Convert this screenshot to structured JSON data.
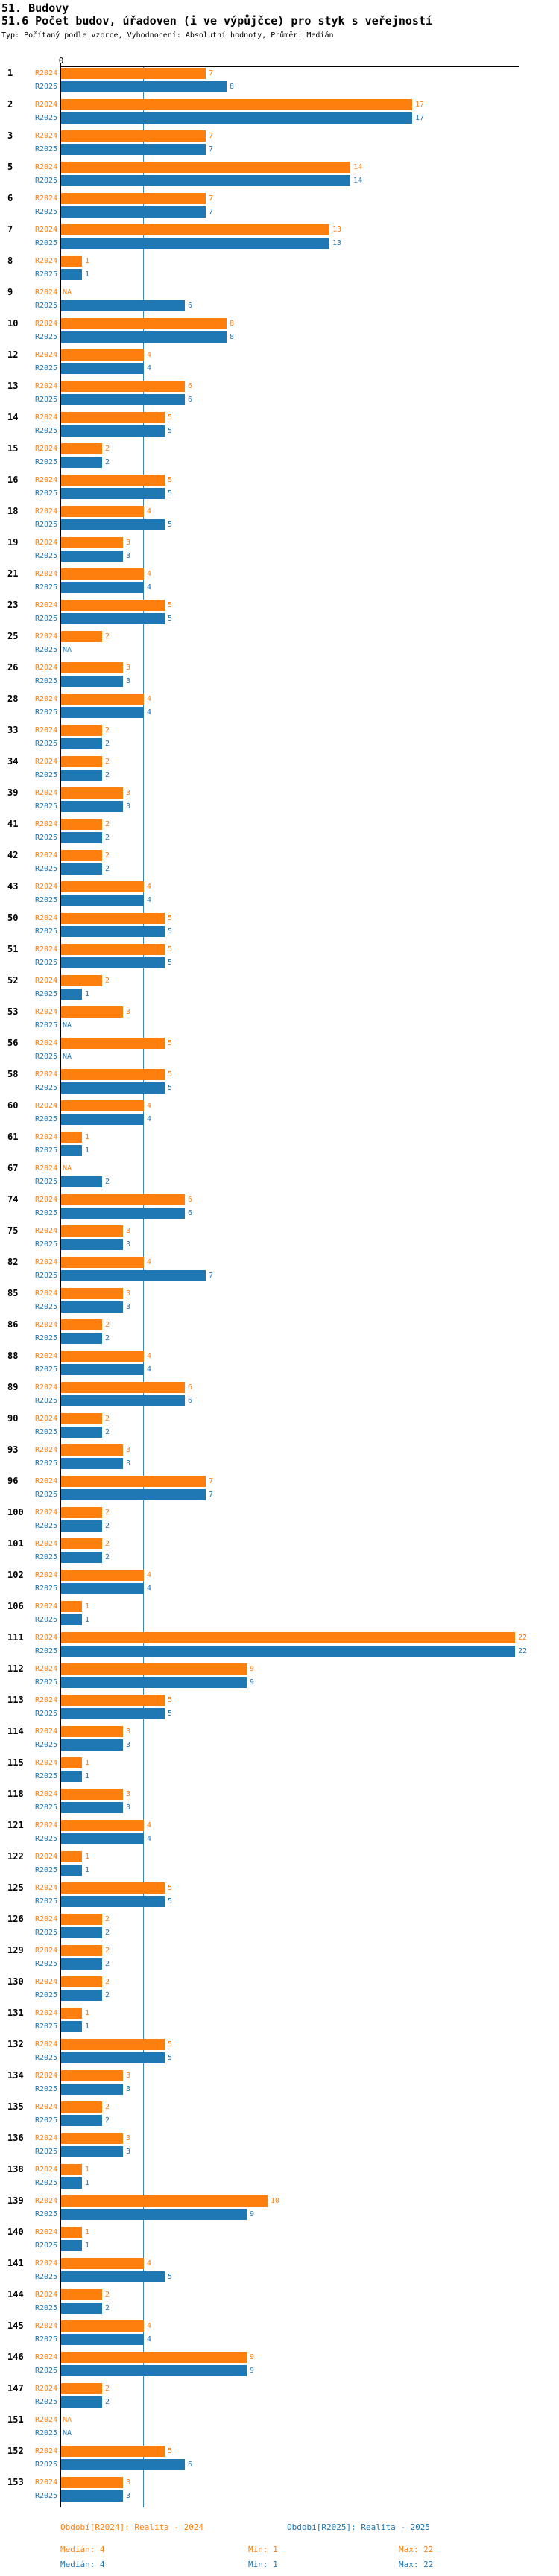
{
  "header": {
    "section_title": "51. Budovy",
    "indicator_title": "51.6 Počet budov, úřadoven (i ve výpůjčce) pro styk s veřejností",
    "type_line": "Typ: Počítaný podle vzorce, Vyhodnocení: Absolutní hodnoty, Průměr: Medián"
  },
  "chart_data": {
    "type": "bar",
    "orientation": "horizontal",
    "title": "51.6 Počet budov, úřadoven (i ve výpůjčce) pro styk s veřejností",
    "xlabel": "",
    "ylabel": "",
    "xlim": [
      0,
      22.2
    ],
    "grid": false,
    "legend_position": "bottom",
    "axis": {
      "zero_label": "0",
      "median_line_x": 4,
      "median_line_color": "#3C86BE"
    },
    "na_label": "NA",
    "series": [
      {
        "name": "R2024",
        "color": "#FF7F0E"
      },
      {
        "name": "R2025",
        "color": "#1F77B4"
      }
    ],
    "rows": [
      {
        "id": "1",
        "R2024": 7,
        "R2025": 8
      },
      {
        "id": "2",
        "R2024": 17,
        "R2025": 17
      },
      {
        "id": "3",
        "R2024": 7,
        "R2025": 7
      },
      {
        "id": "5",
        "R2024": 14,
        "R2025": 14
      },
      {
        "id": "6",
        "R2024": 7,
        "R2025": 7
      },
      {
        "id": "7",
        "R2024": 13,
        "R2025": 13
      },
      {
        "id": "8",
        "R2024": 1,
        "R2025": 1
      },
      {
        "id": "9",
        "R2024": "NA",
        "R2025": 6
      },
      {
        "id": "10",
        "R2024": 8,
        "R2025": 8
      },
      {
        "id": "12",
        "R2024": 4,
        "R2025": 4
      },
      {
        "id": "13",
        "R2024": 6,
        "R2025": 6
      },
      {
        "id": "14",
        "R2024": 5,
        "R2025": 5
      },
      {
        "id": "15",
        "R2024": 2,
        "R2025": 2
      },
      {
        "id": "16",
        "R2024": 5,
        "R2025": 5
      },
      {
        "id": "18",
        "R2024": 4,
        "R2025": 5
      },
      {
        "id": "19",
        "R2024": 3,
        "R2025": 3
      },
      {
        "id": "21",
        "R2024": 4,
        "R2025": 4
      },
      {
        "id": "23",
        "R2024": 5,
        "R2025": 5
      },
      {
        "id": "25",
        "R2024": 2,
        "R2025": "NA"
      },
      {
        "id": "26",
        "R2024": 3,
        "R2025": 3
      },
      {
        "id": "28",
        "R2024": 4,
        "R2025": 4
      },
      {
        "id": "33",
        "R2024": 2,
        "R2025": 2
      },
      {
        "id": "34",
        "R2024": 2,
        "R2025": 2
      },
      {
        "id": "39",
        "R2024": 3,
        "R2025": 3
      },
      {
        "id": "41",
        "R2024": 2,
        "R2025": 2
      },
      {
        "id": "42",
        "R2024": 2,
        "R2025": 2
      },
      {
        "id": "43",
        "R2024": 4,
        "R2025": 4
      },
      {
        "id": "50",
        "R2024": 5,
        "R2025": 5
      },
      {
        "id": "51",
        "R2024": 5,
        "R2025": 5
      },
      {
        "id": "52",
        "R2024": 2,
        "R2025": 1
      },
      {
        "id": "53",
        "R2024": 3,
        "R2025": "NA"
      },
      {
        "id": "56",
        "R2024": 5,
        "R2025": "NA"
      },
      {
        "id": "58",
        "R2024": 5,
        "R2025": 5
      },
      {
        "id": "60",
        "R2024": 4,
        "R2025": 4
      },
      {
        "id": "61",
        "R2024": 1,
        "R2025": 1
      },
      {
        "id": "67",
        "R2024": "NA",
        "R2025": 2
      },
      {
        "id": "74",
        "R2024": 6,
        "R2025": 6
      },
      {
        "id": "75",
        "R2024": 3,
        "R2025": 3
      },
      {
        "id": "82",
        "R2024": 4,
        "R2025": 7
      },
      {
        "id": "85",
        "R2024": 3,
        "R2025": 3
      },
      {
        "id": "86",
        "R2024": 2,
        "R2025": 2
      },
      {
        "id": "88",
        "R2024": 4,
        "R2025": 4
      },
      {
        "id": "89",
        "R2024": 6,
        "R2025": 6
      },
      {
        "id": "90",
        "R2024": 2,
        "R2025": 2
      },
      {
        "id": "93",
        "R2024": 3,
        "R2025": 3
      },
      {
        "id": "96",
        "R2024": 7,
        "R2025": 7
      },
      {
        "id": "100",
        "R2024": 2,
        "R2025": 2
      },
      {
        "id": "101",
        "R2024": 2,
        "R2025": 2
      },
      {
        "id": "102",
        "R2024": 4,
        "R2025": 4
      },
      {
        "id": "106",
        "R2024": 1,
        "R2025": 1
      },
      {
        "id": "111",
        "R2024": 22,
        "R2025": 22
      },
      {
        "id": "112",
        "R2024": 9,
        "R2025": 9
      },
      {
        "id": "113",
        "R2024": 5,
        "R2025": 5
      },
      {
        "id": "114",
        "R2024": 3,
        "R2025": 3
      },
      {
        "id": "115",
        "R2024": 1,
        "R2025": 1
      },
      {
        "id": "118",
        "R2024": 3,
        "R2025": 3
      },
      {
        "id": "121",
        "R2024": 4,
        "R2025": 4
      },
      {
        "id": "122",
        "R2024": 1,
        "R2025": 1
      },
      {
        "id": "125",
        "R2024": 5,
        "R2025": 5
      },
      {
        "id": "126",
        "R2024": 2,
        "R2025": 2
      },
      {
        "id": "129",
        "R2024": 2,
        "R2025": 2
      },
      {
        "id": "130",
        "R2024": 2,
        "R2025": 2
      },
      {
        "id": "131",
        "R2024": 1,
        "R2025": 1
      },
      {
        "id": "132",
        "R2024": 5,
        "R2025": 5
      },
      {
        "id": "134",
        "R2024": 3,
        "R2025": 3
      },
      {
        "id": "135",
        "R2024": 2,
        "R2025": 2
      },
      {
        "id": "136",
        "R2024": 3,
        "R2025": 3
      },
      {
        "id": "138",
        "R2024": 1,
        "R2025": 1
      },
      {
        "id": "139",
        "R2024": 10,
        "R2025": 9
      },
      {
        "id": "140",
        "R2024": 1,
        "R2025": 1
      },
      {
        "id": "141",
        "R2024": 4,
        "R2025": 5
      },
      {
        "id": "144",
        "R2024": 2,
        "R2025": 2
      },
      {
        "id": "145",
        "R2024": 4,
        "R2025": 4
      },
      {
        "id": "146",
        "R2024": 9,
        "R2025": 9
      },
      {
        "id": "147",
        "R2024": 2,
        "R2025": 2
      },
      {
        "id": "151",
        "R2024": "NA",
        "R2025": "NA"
      },
      {
        "id": "152",
        "R2024": 5,
        "R2025": 6
      },
      {
        "id": "153",
        "R2024": 3,
        "R2025": 3
      }
    ]
  },
  "footer": {
    "period_r2024": "Období[R2024]: Realita - 2024",
    "period_r2025": "Období[R2025]: Realita - 2025",
    "r2024_stats": {
      "median": "Medián: 4",
      "min": "Min: 1",
      "max": "Max: 22"
    },
    "r2025_stats": {
      "median": "Medián: 4",
      "min": "Min: 1",
      "max": "Max: 22"
    }
  }
}
